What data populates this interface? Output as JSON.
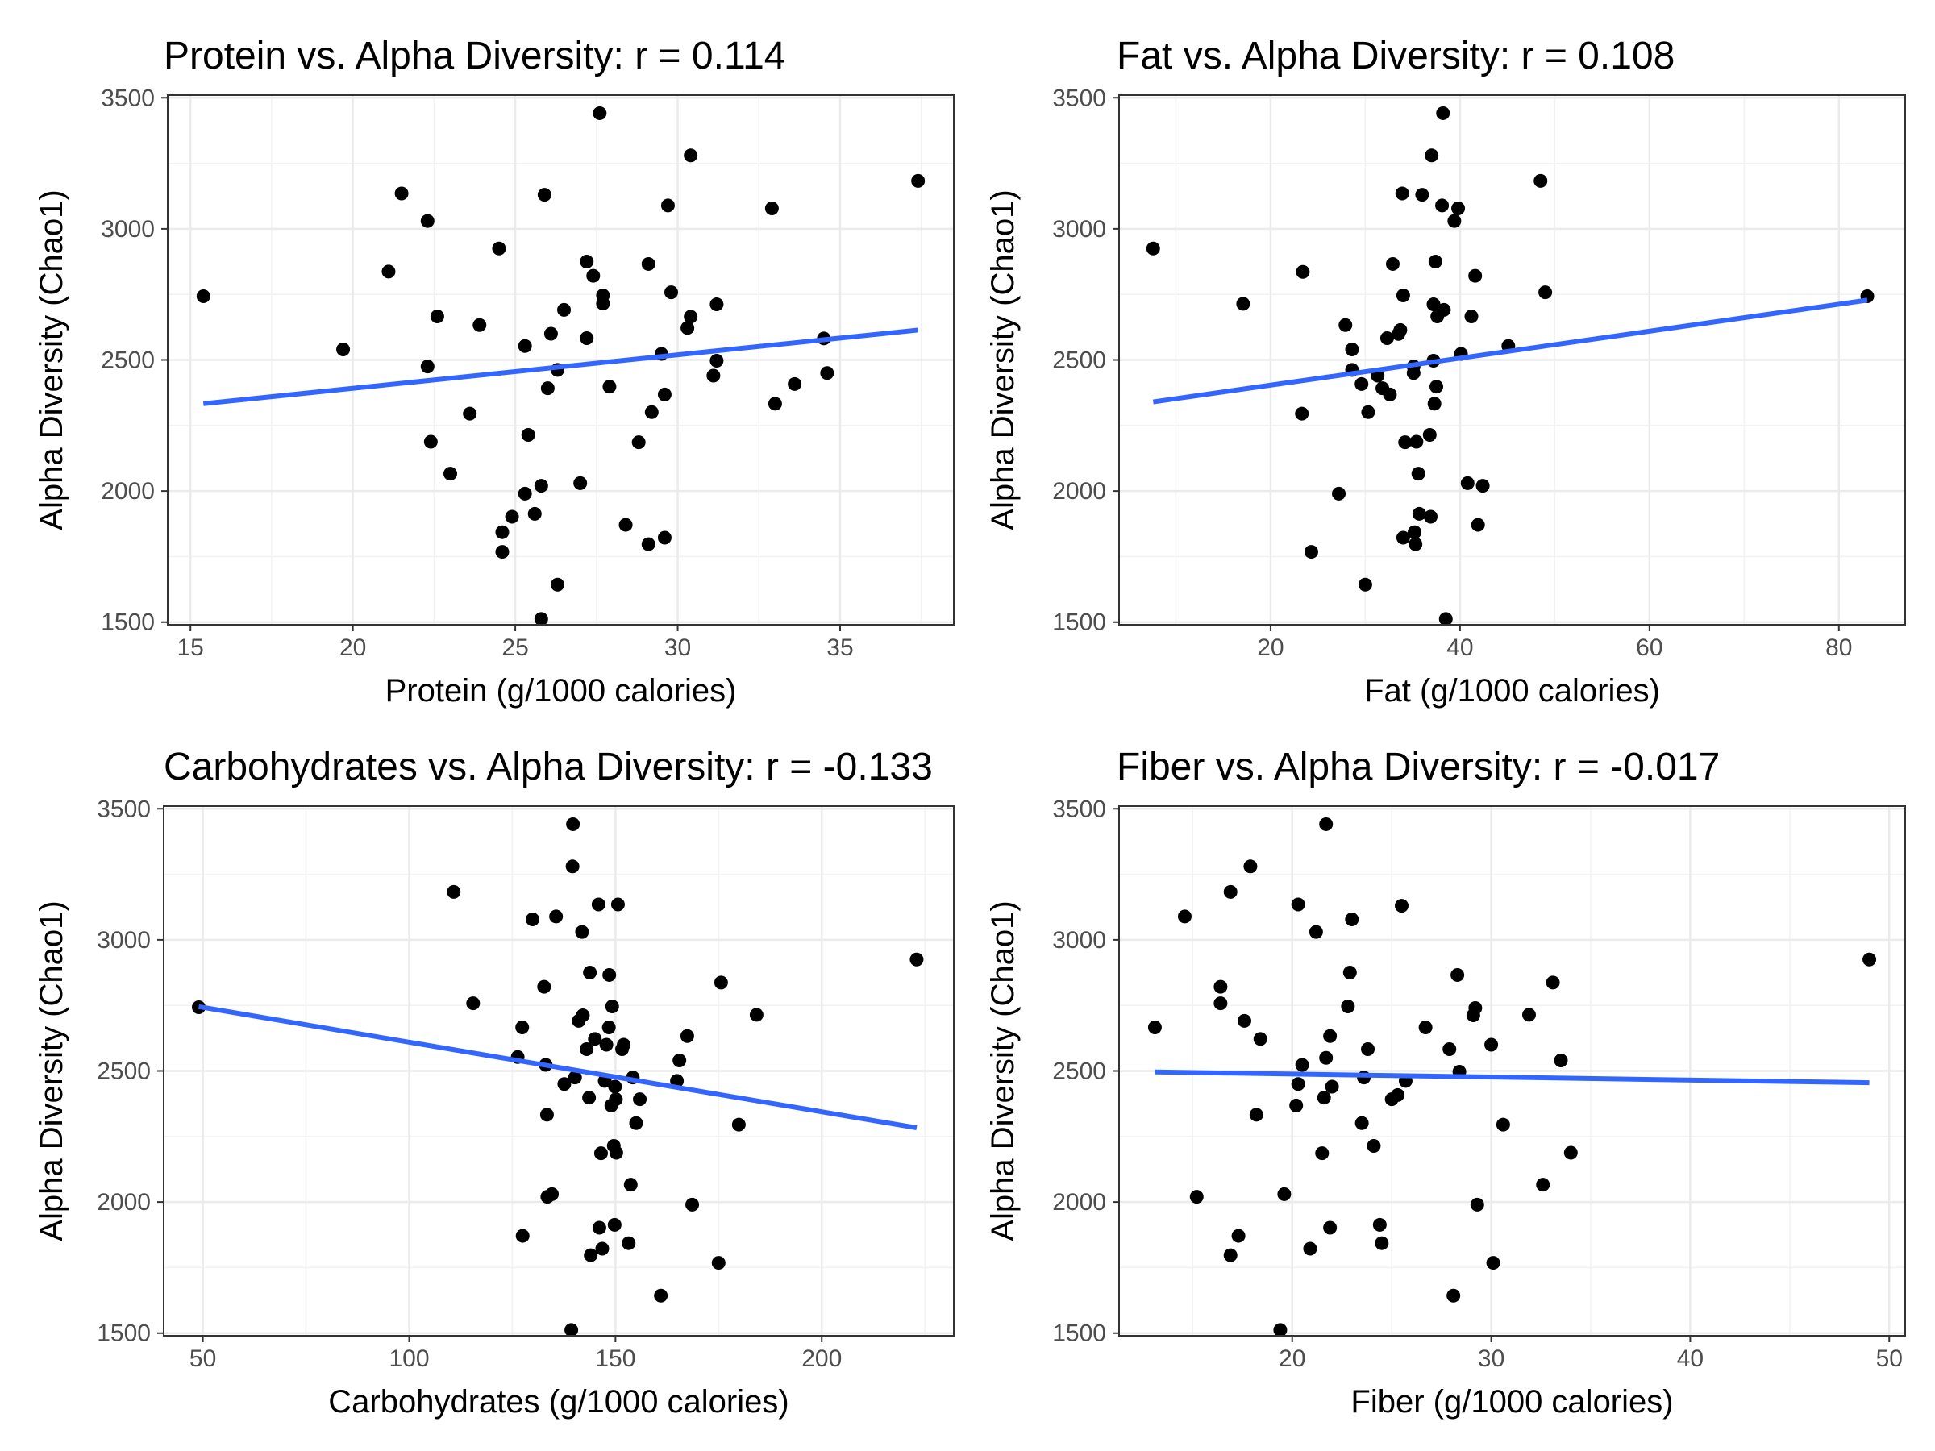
{
  "chart_data": [
    {
      "type": "scatter",
      "title": "Protein vs. Alpha Diversity: r = 0.114",
      "xlabel": "Protein (g/1000 calories)",
      "ylabel": "Alpha Diversity (Chao1)",
      "xlim": [
        14.3,
        38.5
      ],
      "ylim": [
        1490,
        3510
      ],
      "xticks": [
        15,
        20,
        25,
        30,
        35
      ],
      "yticks": [
        1500,
        2000,
        2500,
        3000,
        3500
      ],
      "grid": true,
      "trend": {
        "x": [
          15.4,
          37.4
        ],
        "y": [
          2333,
          2614
        ],
        "color": "#3366FF"
      },
      "points": [
        [
          15.4,
          2743
        ],
        [
          19.7,
          2540
        ],
        [
          21.1,
          2837
        ],
        [
          21.5,
          3135
        ],
        [
          22.3,
          3030
        ],
        [
          22.3,
          2475
        ],
        [
          22.4,
          2188
        ],
        [
          22.6,
          2666
        ],
        [
          23.0,
          2066
        ],
        [
          23.6,
          2295
        ],
        [
          23.9,
          2633
        ],
        [
          24.5,
          2925
        ],
        [
          24.6,
          1843
        ],
        [
          24.6,
          1768
        ],
        [
          24.9,
          1902
        ],
        [
          25.3,
          1990
        ],
        [
          25.3,
          2553
        ],
        [
          25.4,
          2214
        ],
        [
          25.6,
          1913
        ],
        [
          25.8,
          2020
        ],
        [
          25.9,
          3130
        ],
        [
          26.0,
          2392
        ],
        [
          26.1,
          2600
        ],
        [
          26.3,
          2462
        ],
        [
          26.3,
          1643
        ],
        [
          26.5,
          2691
        ],
        [
          25.8,
          1512
        ],
        [
          27.0,
          2030
        ],
        [
          27.2,
          2875
        ],
        [
          27.2,
          2583
        ],
        [
          27.4,
          2821
        ],
        [
          27.7,
          2746
        ],
        [
          27.7,
          2715
        ],
        [
          27.6,
          3441
        ],
        [
          27.9,
          2398
        ],
        [
          28.4,
          1871
        ],
        [
          28.8,
          2186
        ],
        [
          29.1,
          2866
        ],
        [
          29.1,
          1797
        ],
        [
          29.2,
          2301
        ],
        [
          29.5,
          2523
        ],
        [
          29.6,
          2368
        ],
        [
          29.6,
          1822
        ],
        [
          29.7,
          3089
        ],
        [
          29.8,
          2758
        ],
        [
          30.3,
          2622
        ],
        [
          30.4,
          2665
        ],
        [
          30.4,
          3280
        ],
        [
          31.1,
          2440
        ],
        [
          31.2,
          2497
        ],
        [
          31.2,
          2712
        ],
        [
          32.9,
          3078
        ],
        [
          33.0,
          2333
        ],
        [
          33.6,
          2408
        ],
        [
          34.5,
          2582
        ],
        [
          34.6,
          2450
        ],
        [
          37.4,
          3183
        ]
      ]
    },
    {
      "type": "scatter",
      "title": "Fat vs. Alpha Diversity: r = 0.108",
      "xlabel": "Fat (g/1000 calories)",
      "ylabel": "Alpha Diversity (Chao1)",
      "xlim": [
        4.0,
        87.0
      ],
      "ylim": [
        1490,
        3510
      ],
      "xticks": [
        20,
        40,
        60,
        80
      ],
      "yticks": [
        1500,
        2000,
        2500,
        3000,
        3500
      ],
      "grid": true,
      "trend": {
        "x": [
          7.6,
          83.0
        ],
        "y": [
          2340,
          2728
        ],
        "color": "#3366FF"
      },
      "points": [
        [
          7.6,
          2925
        ],
        [
          17.1,
          2714
        ],
        [
          23.4,
          2836
        ],
        [
          23.3,
          2295
        ],
        [
          24.3,
          1768
        ],
        [
          27.2,
          1990
        ],
        [
          27.9,
          2633
        ],
        [
          28.6,
          2540
        ],
        [
          28.6,
          2462
        ],
        [
          29.6,
          2408
        ],
        [
          30.0,
          1643
        ],
        [
          30.3,
          2301
        ],
        [
          31.3,
          2440
        ],
        [
          31.8,
          2392
        ],
        [
          32.3,
          2583
        ],
        [
          32.6,
          2368
        ],
        [
          32.9,
          2866
        ],
        [
          33.5,
          2599
        ],
        [
          33.7,
          2614
        ],
        [
          33.9,
          3135
        ],
        [
          34.0,
          2746
        ],
        [
          34.0,
          1822
        ],
        [
          34.2,
          2186
        ],
        [
          35.1,
          2475
        ],
        [
          35.1,
          2450
        ],
        [
          35.2,
          1843
        ],
        [
          35.3,
          1797
        ],
        [
          35.4,
          2188
        ],
        [
          35.6,
          2066
        ],
        [
          35.7,
          1913
        ],
        [
          36.0,
          3130
        ],
        [
          36.8,
          2214
        ],
        [
          36.9,
          1902
        ],
        [
          37.0,
          3280
        ],
        [
          37.2,
          2712
        ],
        [
          37.2,
          2497
        ],
        [
          37.3,
          2333
        ],
        [
          37.4,
          2875
        ],
        [
          37.5,
          2398
        ],
        [
          37.6,
          2666
        ],
        [
          38.1,
          3089
        ],
        [
          38.2,
          3441
        ],
        [
          38.3,
          2691
        ],
        [
          38.5,
          1512
        ],
        [
          39.4,
          3030
        ],
        [
          39.8,
          3078
        ],
        [
          40.1,
          2523
        ],
        [
          40.8,
          2030
        ],
        [
          41.2,
          2666
        ],
        [
          41.6,
          2821
        ],
        [
          41.9,
          1871
        ],
        [
          42.4,
          2020
        ],
        [
          45.1,
          2553
        ],
        [
          48.5,
          3183
        ],
        [
          49.0,
          2758
        ],
        [
          83.0,
          2743
        ]
      ]
    },
    {
      "type": "scatter",
      "title": "Carbohydrates vs. Alpha Diversity: r = -0.133",
      "xlabel": "Carbohydrates (g/1000 calories)",
      "ylabel": "Alpha Diversity (Chao1)",
      "xlim": [
        40.5,
        232.0
      ],
      "ylim": [
        1490,
        3510
      ],
      "xticks": [
        50,
        100,
        150,
        200
      ],
      "yticks": [
        1500,
        2000,
        2500,
        3000,
        3500
      ],
      "grid": true,
      "trend": {
        "x": [
          49.0,
          223.0
        ],
        "y": [
          2745,
          2283
        ],
        "color": "#3366FF"
      },
      "points": [
        [
          49.0,
          2743
        ],
        [
          110.8,
          3183
        ],
        [
          115.5,
          2758
        ],
        [
          126.3,
          2553
        ],
        [
          127.4,
          2666
        ],
        [
          127.5,
          1871
        ],
        [
          129.9,
          3078
        ],
        [
          132.7,
          2821
        ],
        [
          133.1,
          2523
        ],
        [
          133.4,
          2333
        ],
        [
          133.5,
          2020
        ],
        [
          134.6,
          2030
        ],
        [
          135.6,
          3089
        ],
        [
          137.6,
          2450
        ],
        [
          139.3,
          1512
        ],
        [
          139.6,
          3280
        ],
        [
          139.7,
          3441
        ],
        [
          140.2,
          2475
        ],
        [
          141.1,
          2691
        ],
        [
          141.9,
          3030
        ],
        [
          142.1,
          2712
        ],
        [
          143.0,
          2583
        ],
        [
          143.6,
          2398
        ],
        [
          143.8,
          2875
        ],
        [
          144.0,
          1797
        ],
        [
          145.0,
          2622
        ],
        [
          145.9,
          3135
        ],
        [
          146.1,
          1902
        ],
        [
          146.5,
          2186
        ],
        [
          146.8,
          1822
        ],
        [
          147.4,
          2462
        ],
        [
          147.8,
          2600
        ],
        [
          148.4,
          2666
        ],
        [
          148.5,
          2866
        ],
        [
          149.0,
          2368
        ],
        [
          149.2,
          2746
        ],
        [
          149.6,
          2214
        ],
        [
          149.8,
          1913
        ],
        [
          149.9,
          2440
        ],
        [
          150.1,
          2392
        ],
        [
          150.2,
          2188
        ],
        [
          150.6,
          3135
        ],
        [
          151.6,
          2583
        ],
        [
          152.0,
          2600
        ],
        [
          153.2,
          1843
        ],
        [
          153.7,
          2066
        ],
        [
          154.2,
          2475
        ],
        [
          155.0,
          2301
        ],
        [
          155.9,
          2392
        ],
        [
          161.0,
          1643
        ],
        [
          164.9,
          2462
        ],
        [
          165.5,
          2540
        ],
        [
          167.4,
          2633
        ],
        [
          168.6,
          1990
        ],
        [
          175.0,
          1768
        ],
        [
          175.6,
          2837
        ],
        [
          179.9,
          2295
        ],
        [
          184.2,
          2714
        ],
        [
          223.0,
          2925
        ]
      ]
    },
    {
      "type": "scatter",
      "title": "Fiber vs. Alpha Diversity: r = -0.017",
      "xlabel": "Fiber (g/1000 calories)",
      "ylabel": "Alpha Diversity (Chao1)",
      "xlim": [
        11.3,
        50.8
      ],
      "ylim": [
        1490,
        3510
      ],
      "xticks": [
        20,
        30,
        40,
        50
      ],
      "yticks": [
        1500,
        2000,
        2500,
        3000,
        3500
      ],
      "grid": true,
      "trend": {
        "x": [
          13.1,
          49.0
        ],
        "y": [
          2496,
          2455
        ],
        "color": "#3366FF"
      },
      "points": [
        [
          13.1,
          2666
        ],
        [
          14.6,
          3089
        ],
        [
          15.2,
          2020
        ],
        [
          16.4,
          2821
        ],
        [
          16.4,
          2758
        ],
        [
          16.9,
          3183
        ],
        [
          16.9,
          1797
        ],
        [
          17.3,
          1871
        ],
        [
          17.6,
          2691
        ],
        [
          17.9,
          3280
        ],
        [
          18.2,
          2333
        ],
        [
          18.4,
          2622
        ],
        [
          19.4,
          1512
        ],
        [
          19.6,
          2030
        ],
        [
          20.2,
          2368
        ],
        [
          20.3,
          3135
        ],
        [
          20.3,
          2450
        ],
        [
          20.5,
          2523
        ],
        [
          20.9,
          1822
        ],
        [
          21.2,
          3030
        ],
        [
          21.5,
          2186
        ],
        [
          21.6,
          2398
        ],
        [
          21.7,
          2550
        ],
        [
          21.7,
          3441
        ],
        [
          21.9,
          2633
        ],
        [
          21.9,
          1902
        ],
        [
          22.0,
          2440
        ],
        [
          22.8,
          2746
        ],
        [
          22.9,
          2875
        ],
        [
          23.0,
          3078
        ],
        [
          23.5,
          2301
        ],
        [
          23.6,
          2475
        ],
        [
          23.8,
          2583
        ],
        [
          24.1,
          2214
        ],
        [
          24.4,
          1913
        ],
        [
          24.5,
          1843
        ],
        [
          25.0,
          2392
        ],
        [
          25.3,
          2408
        ],
        [
          25.5,
          3130
        ],
        [
          25.7,
          2462
        ],
        [
          26.7,
          2666
        ],
        [
          27.9,
          2583
        ],
        [
          28.1,
          1643
        ],
        [
          28.3,
          2866
        ],
        [
          28.4,
          2497
        ],
        [
          29.1,
          2712
        ],
        [
          29.2,
          2740
        ],
        [
          29.3,
          1990
        ],
        [
          30.0,
          2600
        ],
        [
          30.1,
          1768
        ],
        [
          30.6,
          2295
        ],
        [
          31.9,
          2714
        ],
        [
          32.6,
          2066
        ],
        [
          33.1,
          2837
        ],
        [
          33.5,
          2540
        ],
        [
          34.0,
          2188
        ],
        [
          49.0,
          2925
        ]
      ]
    }
  ]
}
